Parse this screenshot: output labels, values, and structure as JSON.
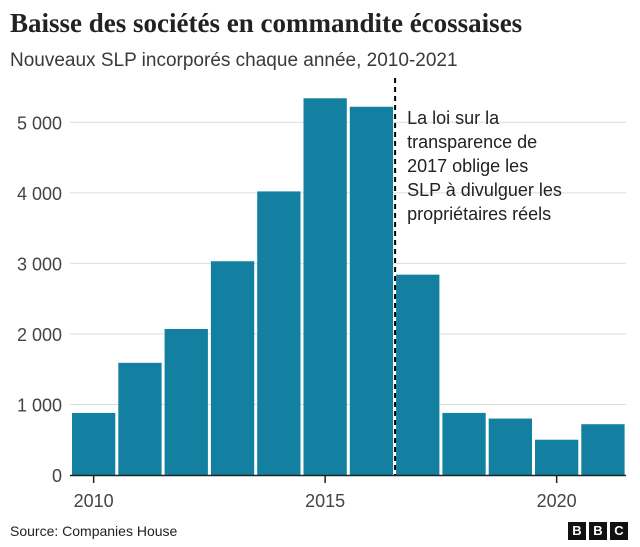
{
  "title": "Baisse des sociétés en commandite écossaises",
  "subtitle": "Nouveaux SLP incorporés chaque année, 2010-2021",
  "source": "Source: Companies House",
  "logo": [
    "B",
    "B",
    "C"
  ],
  "colors": {
    "bar": "#1380a1",
    "grid": "#dcdcdc",
    "axis": "#222222",
    "marker": "#000000"
  },
  "chart_data": {
    "type": "bar",
    "title": "Baisse des sociétés en commandite écossaises",
    "subtitle": "Nouveaux SLP incorporés chaque année, 2010-2021",
    "categories": [
      2010,
      2011,
      2012,
      2013,
      2014,
      2015,
      2016,
      2017,
      2018,
      2019,
      2020,
      2021
    ],
    "values": [
      880,
      1590,
      2070,
      3030,
      4020,
      5340,
      5220,
      2840,
      880,
      800,
      500,
      720
    ],
    "xlabel": "",
    "ylabel": "",
    "ylim": [
      0,
      5500
    ],
    "yticks": [
      0,
      1000,
      2000,
      3000,
      4000,
      5000
    ],
    "ytick_labels": [
      "0",
      "1 000",
      "2 000",
      "3 000",
      "4 000",
      "5 000"
    ],
    "xticks": [
      2010,
      2015,
      2020
    ],
    "xtick_labels": [
      "2010",
      "2015",
      "2020"
    ],
    "grid": true,
    "annotation": {
      "x": 2016.5,
      "lines": [
        "La loi sur la",
        "transparence de",
        "2017 oblige les",
        "SLP à divulguer les",
        "propriétaires réels"
      ]
    }
  }
}
